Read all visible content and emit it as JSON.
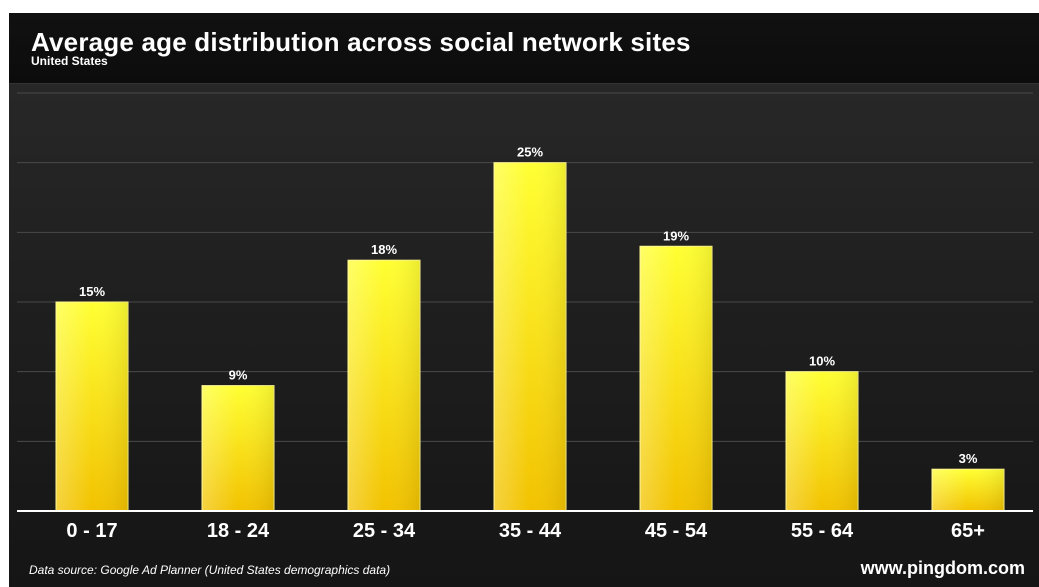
{
  "header": {
    "title": "Average age distribution across social network sites",
    "subtitle": "United States"
  },
  "footer": {
    "source": "Data source: Google Ad Planner (United States demographics data)",
    "brand": "www.pingdom.com"
  },
  "colors": {
    "bar_top": "#ffff33",
    "bar_bottom": "#f2c200",
    "background": "#1e1e1e",
    "text": "#ffffff"
  },
  "chart_data": {
    "type": "bar",
    "title": "Average age distribution across social network sites",
    "subtitle": "United States",
    "categories": [
      "0 - 17",
      "18 - 24",
      "25 - 34",
      "35 - 44",
      "45 - 54",
      "55 - 64",
      "65+"
    ],
    "values": [
      15,
      9,
      18,
      25,
      19,
      10,
      3
    ],
    "value_labels": [
      "15%",
      "9%",
      "18%",
      "25%",
      "19%",
      "10%",
      "3%"
    ],
    "unit": "%",
    "ylim": [
      0,
      30
    ],
    "grid": true,
    "legend": "none"
  }
}
